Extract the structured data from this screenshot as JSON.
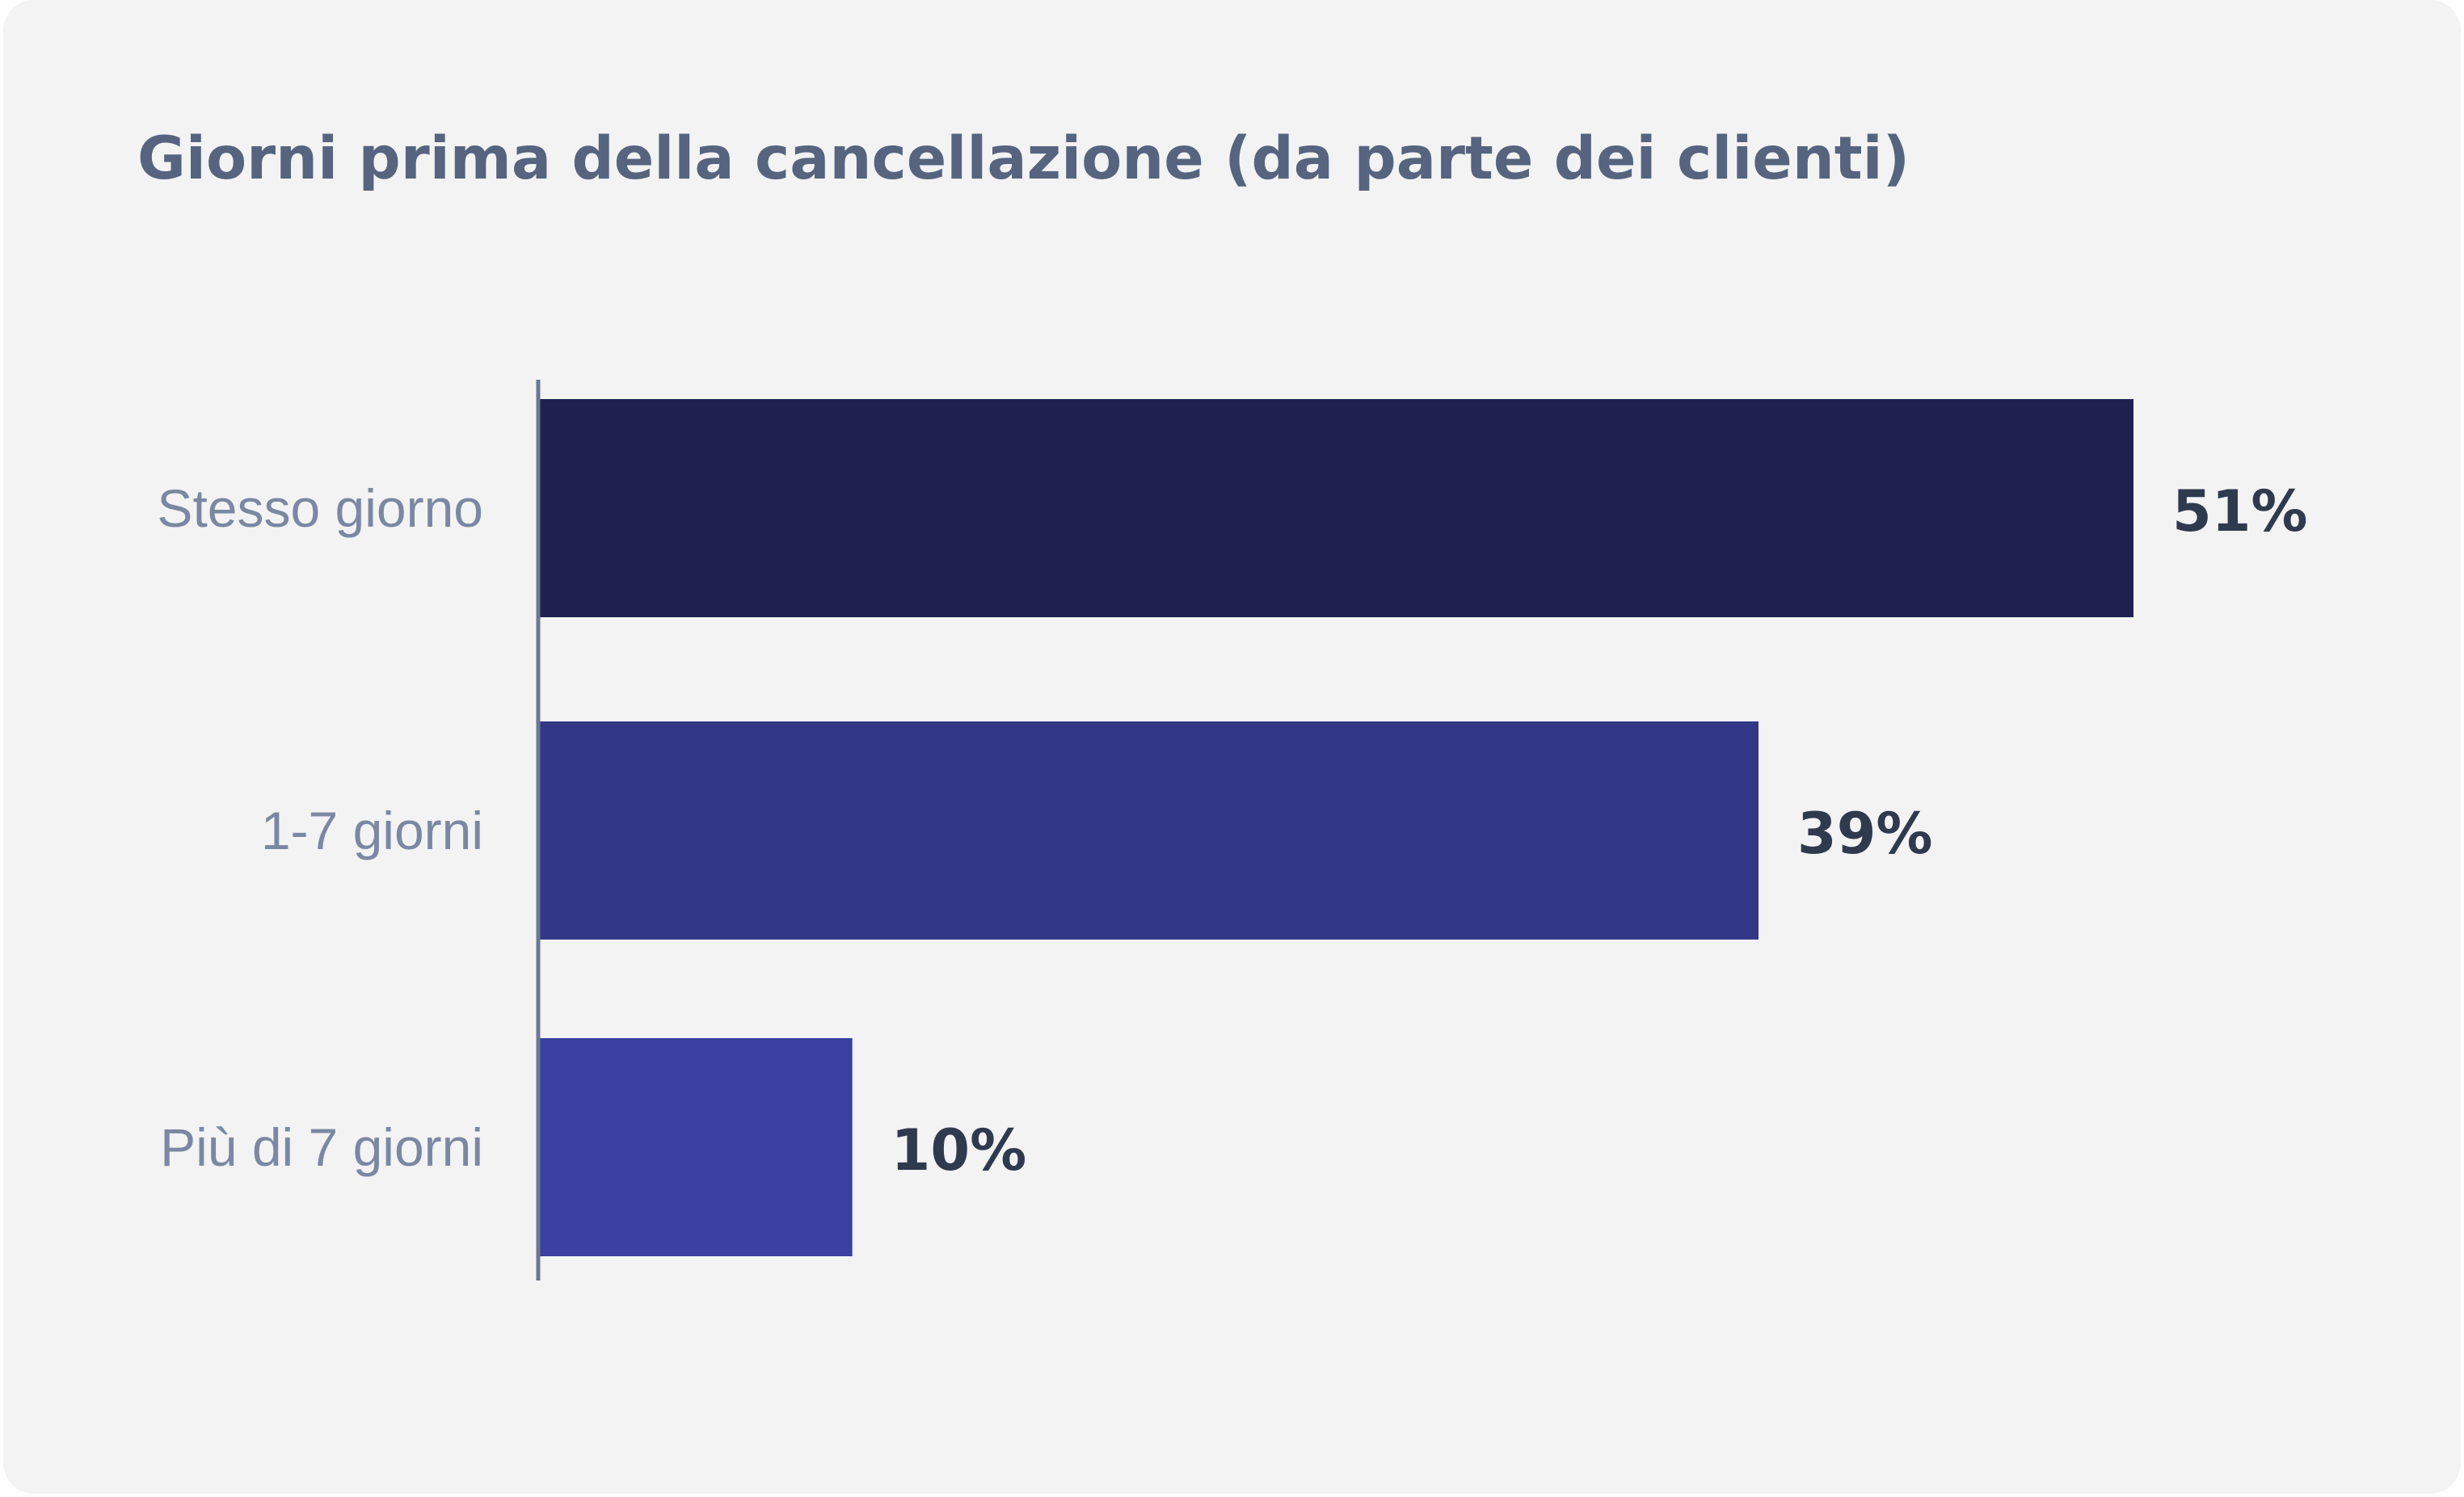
{
  "chart_data": {
    "type": "bar",
    "orientation": "horizontal",
    "title": "Giorni prima della cancellazione (da parte dei clienti)",
    "categories": [
      "Stesso giorno",
      "1-7 giorni",
      "Più di 7 giorni"
    ],
    "values": [
      51,
      39,
      10
    ],
    "value_labels": [
      "51%",
      "39%",
      "10%"
    ],
    "unit": "%",
    "colors": [
      "#1e2150",
      "#323887",
      "#3a41a0"
    ],
    "xlabel": "",
    "ylabel": "",
    "xlim": [
      0,
      51
    ],
    "grid": false,
    "legend": "none"
  }
}
